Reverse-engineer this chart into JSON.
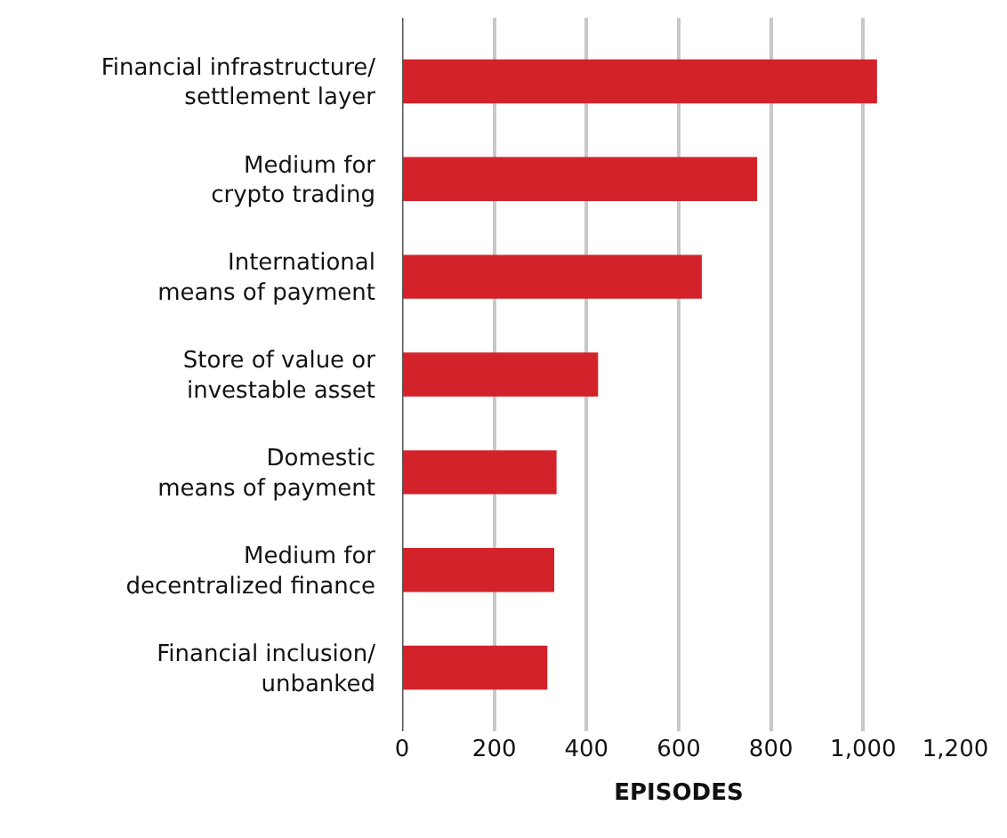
{
  "chart_data": {
    "type": "bar",
    "orientation": "horizontal",
    "xlabel": "EPISODES",
    "categories": [
      "Financial infrastructure/\nsettlement layer",
      "Medium for\ncrypto trading",
      "International\nmeans of payment",
      "Store of value or\ninvestable asset",
      "Domestic\nmeans of payment",
      "Medium for\ndecentralized finance",
      "Financial inclusion/\nunbanked"
    ],
    "values": [
      1030,
      770,
      650,
      425,
      335,
      330,
      315
    ],
    "color": "#d3222a",
    "xlim": [
      0,
      1200
    ],
    "xticks": [
      0,
      200,
      400,
      600,
      800,
      {
        "value": 1000,
        "label": "1,000"
      },
      {
        "value": 1200,
        "label": "1,200"
      }
    ],
    "grid": "x",
    "legend": false
  }
}
